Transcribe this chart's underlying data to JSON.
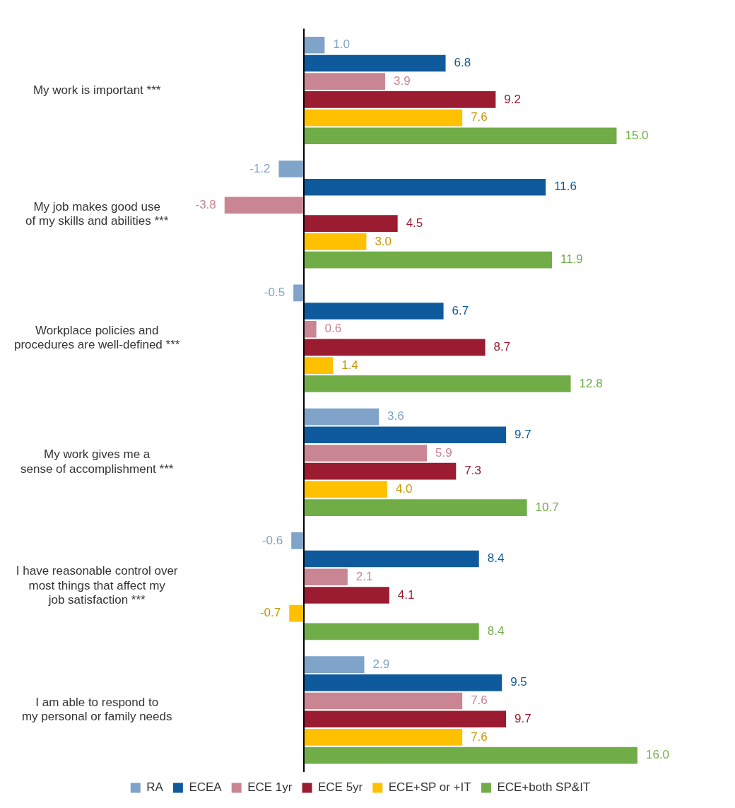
{
  "chart_data": {
    "type": "bar",
    "orientation": "horizontal",
    "categories": [
      "My work is important ***",
      "My job makes good use\nof my skills and abilities ***",
      "Workplace policies and\nprocedures are well-defined ***",
      "My work gives me a\nsense of accomplishment ***",
      "I have reasonable control over\nmost things that affect my\njob satisfaction ***",
      "I am able to respond to\nmy personal or family needs"
    ],
    "series": [
      {
        "name": "RA",
        "color": "#7fa3c9",
        "values": [
          1.0,
          -1.2,
          -0.5,
          3.6,
          -0.6,
          2.9
        ],
        "value_labels": [
          "1.0",
          "-1.2",
          "-0.5",
          "3.6",
          "-0.6",
          "2.9"
        ]
      },
      {
        "name": "ECEA",
        "color": "#0f5a9c",
        "values": [
          6.8,
          11.6,
          6.7,
          9.7,
          8.4,
          9.5
        ],
        "value_labels": [
          "6.8",
          "11.6",
          "6.7",
          "9.7",
          "8.4",
          "9.5"
        ]
      },
      {
        "name": "ECE 1yr",
        "color": "#c98591",
        "values": [
          3.9,
          -3.8,
          0.6,
          5.9,
          2.1,
          7.6
        ],
        "value_labels": [
          "3.9",
          "-3.8",
          "0.6",
          "5.9",
          "2.1",
          "7.6"
        ]
      },
      {
        "name": "ECE 5yr",
        "color": "#9b1b30",
        "values": [
          9.2,
          4.5,
          8.7,
          7.3,
          4.1,
          9.7
        ],
        "value_labels": [
          "9.2",
          "4.5",
          "8.7",
          "7.3",
          "4.1",
          "9.7"
        ]
      },
      {
        "name": "ECE+SP or +IT",
        "color": "#ffc000",
        "values": [
          7.6,
          3.0,
          1.4,
          4.0,
          -0.7,
          7.6
        ],
        "value_labels": [
          "7.6",
          "3.0",
          "1.4",
          "4.0",
          "-0.7",
          "7.6"
        ]
      },
      {
        "name": "ECE+both SP&IT",
        "color": "#70ad47",
        "values": [
          15.0,
          11.9,
          12.8,
          10.7,
          8.4,
          16.0
        ],
        "value_labels": [
          "15.0",
          "11.9",
          "12.8",
          "10.7",
          "8.4",
          "16.0"
        ]
      }
    ],
    "legend": "bottom",
    "grid": false,
    "tick_labels": "y"
  }
}
